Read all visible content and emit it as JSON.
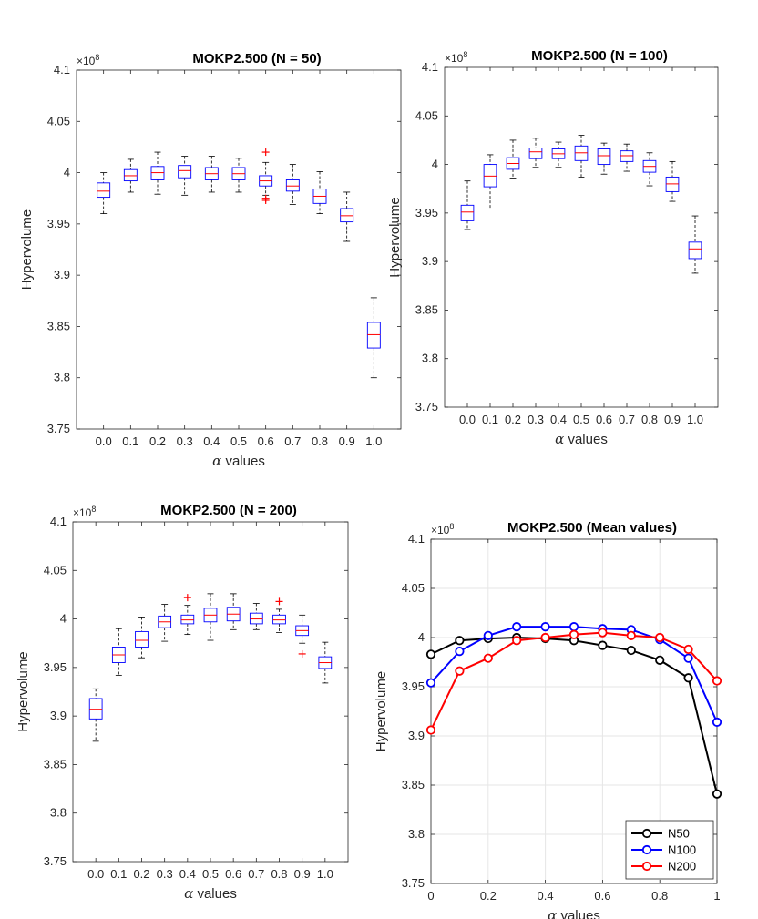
{
  "chart_data": [
    {
      "type": "box",
      "title": "MOKP2.500 (N = 50)",
      "xlabel_symbol": "α",
      "xlabel_text": " values",
      "ylabel": "Hypervolume",
      "yexponent_base": "×10",
      "yexponent_power": "8",
      "ylim": [
        3.75,
        4.1
      ],
      "yticks": [
        "3.75",
        "3.8",
        "3.85",
        "3.9",
        "3.95",
        "4",
        "4.05",
        "4.1"
      ],
      "categories": [
        "0.0",
        "0.1",
        "0.2",
        "0.3",
        "0.4",
        "0.5",
        "0.6",
        "0.7",
        "0.8",
        "0.9",
        "1.0"
      ],
      "boxes": [
        {
          "median": 3.982,
          "q1": 3.976,
          "q3": 3.99,
          "wlo": 3.96,
          "whi": 4.0,
          "outliers": []
        },
        {
          "median": 3.997,
          "q1": 3.992,
          "q3": 4.003,
          "wlo": 3.981,
          "whi": 4.013,
          "outliers": []
        },
        {
          "median": 4.0,
          "q1": 3.993,
          "q3": 4.006,
          "wlo": 3.979,
          "whi": 4.02,
          "outliers": []
        },
        {
          "median": 4.002,
          "q1": 3.995,
          "q3": 4.007,
          "wlo": 3.978,
          "whi": 4.016,
          "outliers": []
        },
        {
          "median": 3.999,
          "q1": 3.993,
          "q3": 4.005,
          "wlo": 3.981,
          "whi": 4.016,
          "outliers": []
        },
        {
          "median": 3.999,
          "q1": 3.993,
          "q3": 4.005,
          "wlo": 3.981,
          "whi": 4.014,
          "outliers": []
        },
        {
          "median": 3.992,
          "q1": 3.987,
          "q3": 3.997,
          "wlo": 3.978,
          "whi": 4.01,
          "outliers": [
            4.02,
            3.975,
            3.973
          ]
        },
        {
          "median": 3.987,
          "q1": 3.982,
          "q3": 3.993,
          "wlo": 3.969,
          "whi": 4.008,
          "outliers": []
        },
        {
          "median": 3.977,
          "q1": 3.97,
          "q3": 3.984,
          "wlo": 3.96,
          "whi": 4.001,
          "outliers": []
        },
        {
          "median": 3.958,
          "q1": 3.952,
          "q3": 3.965,
          "wlo": 3.933,
          "whi": 3.981,
          "outliers": []
        },
        {
          "median": 3.842,
          "q1": 3.829,
          "q3": 3.854,
          "wlo": 3.8,
          "whi": 3.878,
          "outliers": []
        }
      ]
    },
    {
      "type": "box",
      "title": "MOKP2.500 (N = 100)",
      "xlabel_symbol": "α",
      "xlabel_text": " values",
      "ylabel": "Hypervolume",
      "yexponent_base": "×10",
      "yexponent_power": "8",
      "ylim": [
        3.75,
        4.1
      ],
      "yticks": [
        "3.75",
        "3.8",
        "3.85",
        "3.9",
        "3.95",
        "4",
        "4.05",
        "4.1"
      ],
      "categories": [
        "0.0",
        "0.1",
        "0.2",
        "0.3",
        "0.4",
        "0.5",
        "0.6",
        "0.7",
        "0.8",
        "0.9",
        "1.0"
      ],
      "boxes": [
        {
          "median": 3.951,
          "q1": 3.942,
          "q3": 3.958,
          "wlo": 3.933,
          "whi": 3.983,
          "outliers": []
        },
        {
          "median": 3.988,
          "q1": 3.977,
          "q3": 4.0,
          "wlo": 3.954,
          "whi": 4.01,
          "outliers": []
        },
        {
          "median": 4.001,
          "q1": 3.995,
          "q3": 4.007,
          "wlo": 3.986,
          "whi": 4.025,
          "outliers": []
        },
        {
          "median": 4.013,
          "q1": 4.006,
          "q3": 4.017,
          "wlo": 3.997,
          "whi": 4.027,
          "outliers": []
        },
        {
          "median": 4.011,
          "q1": 4.006,
          "q3": 4.016,
          "wlo": 3.997,
          "whi": 4.023,
          "outliers": []
        },
        {
          "median": 4.012,
          "q1": 4.004,
          "q3": 4.019,
          "wlo": 3.987,
          "whi": 4.03,
          "outliers": []
        },
        {
          "median": 4.009,
          "q1": 4.0,
          "q3": 4.016,
          "wlo": 3.99,
          "whi": 4.022,
          "outliers": []
        },
        {
          "median": 4.009,
          "q1": 4.003,
          "q3": 4.014,
          "wlo": 3.993,
          "whi": 4.021,
          "outliers": []
        },
        {
          "median": 3.998,
          "q1": 3.992,
          "q3": 4.004,
          "wlo": 3.978,
          "whi": 4.012,
          "outliers": []
        },
        {
          "median": 3.98,
          "q1": 3.972,
          "q3": 3.987,
          "wlo": 3.962,
          "whi": 4.003,
          "outliers": []
        },
        {
          "median": 3.913,
          "q1": 3.903,
          "q3": 3.92,
          "wlo": 3.888,
          "whi": 3.947,
          "outliers": []
        }
      ]
    },
    {
      "type": "box",
      "title": "MOKP2.500 (N = 200)",
      "xlabel_symbol": "α",
      "xlabel_text": " values",
      "ylabel": "Hypervolume",
      "yexponent_base": "×10",
      "yexponent_power": "8",
      "ylim": [
        3.75,
        4.1
      ],
      "yticks": [
        "3.75",
        "3.8",
        "3.85",
        "3.9",
        "3.95",
        "4",
        "4.05",
        "4.1"
      ],
      "categories": [
        "0.0",
        "0.1",
        "0.2",
        "0.3",
        "0.4",
        "0.5",
        "0.6",
        "0.7",
        "0.8",
        "0.9",
        "1.0"
      ],
      "boxes": [
        {
          "median": 3.907,
          "q1": 3.897,
          "q3": 3.918,
          "wlo": 3.874,
          "whi": 3.928,
          "outliers": []
        },
        {
          "median": 3.963,
          "q1": 3.955,
          "q3": 3.971,
          "wlo": 3.942,
          "whi": 3.99,
          "outliers": []
        },
        {
          "median": 3.978,
          "q1": 3.971,
          "q3": 3.987,
          "wlo": 3.96,
          "whi": 4.002,
          "outliers": []
        },
        {
          "median": 3.997,
          "q1": 3.991,
          "q3": 4.003,
          "wlo": 3.977,
          "whi": 4.015,
          "outliers": []
        },
        {
          "median": 3.999,
          "q1": 3.995,
          "q3": 4.004,
          "wlo": 3.984,
          "whi": 4.014,
          "outliers": [
            4.022
          ]
        },
        {
          "median": 4.004,
          "q1": 3.997,
          "q3": 4.011,
          "wlo": 3.978,
          "whi": 4.026,
          "outliers": []
        },
        {
          "median": 4.005,
          "q1": 3.998,
          "q3": 4.012,
          "wlo": 3.989,
          "whi": 4.026,
          "outliers": []
        },
        {
          "median": 4.0,
          "q1": 3.995,
          "q3": 4.006,
          "wlo": 3.989,
          "whi": 4.016,
          "outliers": []
        },
        {
          "median": 3.999,
          "q1": 3.995,
          "q3": 4.004,
          "wlo": 3.986,
          "whi": 4.01,
          "outliers": [
            4.018
          ]
        },
        {
          "median": 3.988,
          "q1": 3.983,
          "q3": 3.993,
          "wlo": 3.975,
          "whi": 4.004,
          "outliers": [
            3.964
          ]
        },
        {
          "median": 3.955,
          "q1": 3.949,
          "q3": 3.961,
          "wlo": 3.934,
          "whi": 3.976,
          "outliers": []
        }
      ]
    },
    {
      "type": "line",
      "title": "MOKP2.500 (Mean values)",
      "xlabel_symbol": "α",
      "xlabel_text": " values",
      "ylabel": "Hypervolume",
      "yexponent_base": "×10",
      "yexponent_power": "8",
      "ylim": [
        3.75,
        4.1
      ],
      "xlim": [
        0,
        1
      ],
      "yticks": [
        "3.75",
        "3.8",
        "3.85",
        "3.9",
        "3.95",
        "4",
        "4.05",
        "4.1"
      ],
      "xticks": [
        "0",
        "0.2",
        "0.4",
        "0.6",
        "0.8",
        "1"
      ],
      "grid": true,
      "legend_position": "bottom-right",
      "x": [
        0.0,
        0.1,
        0.2,
        0.3,
        0.4,
        0.5,
        0.6,
        0.7,
        0.8,
        0.9,
        1.0
      ],
      "series": [
        {
          "name": "N50",
          "color": "#000000",
          "values": [
            3.983,
            3.997,
            3.999,
            4.0,
            3.999,
            3.997,
            3.992,
            3.987,
            3.977,
            3.959,
            3.841
          ]
        },
        {
          "name": "N100",
          "color": "#0000ff",
          "values": [
            3.954,
            3.986,
            4.002,
            4.011,
            4.011,
            4.011,
            4.009,
            4.008,
            3.998,
            3.979,
            3.914
          ]
        },
        {
          "name": "N200",
          "color": "#ff0000",
          "values": [
            3.906,
            3.966,
            3.979,
            3.997,
            4.0,
            4.003,
            4.005,
            4.002,
            4.0,
            3.988,
            3.956
          ]
        }
      ]
    }
  ]
}
